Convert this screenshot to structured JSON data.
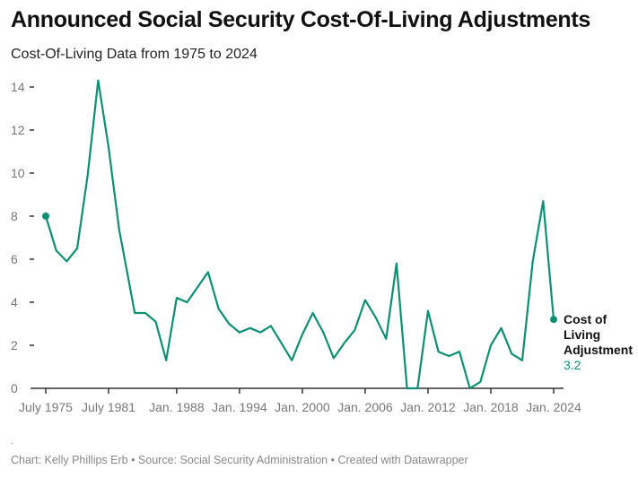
{
  "title": "Announced Social Security Cost-Of-Living Adjustments",
  "subtitle": "Cost-Of-Living Data from 1975 to 2024",
  "footer_dot": ".",
  "footer": "Chart: Kelly Phillips Erb • Source: Social Security Administration • Created with Datawrapper",
  "chart_data": {
    "type": "line",
    "color": "#0e8f73",
    "ylim": [
      0,
      14
    ],
    "yticks": [
      0,
      2,
      4,
      6,
      8,
      10,
      12,
      14
    ],
    "xticks": [
      "July 1975",
      "July 1981",
      "Jan. 1988",
      "Jan. 1994",
      "Jan. 2000",
      "Jan. 2006",
      "Jan. 2012",
      "Jan. 2018",
      "Jan. 2024"
    ],
    "grid": false,
    "series": [
      {
        "name": "Cost of Living Adjustment",
        "end_label": "3.2",
        "x": [
          "July 1975",
          "July 1976",
          "July 1977",
          "July 1978",
          "July 1979",
          "July 1980",
          "July 1981",
          "July 1982",
          "Jan. 1984",
          "Jan. 1985",
          "Jan. 1986",
          "Jan. 1987",
          "Jan. 1988",
          "Jan. 1989",
          "Jan. 1990",
          "Jan. 1991",
          "Jan. 1992",
          "Jan. 1993",
          "Jan. 1994",
          "Jan. 1995",
          "Jan. 1996",
          "Jan. 1997",
          "Jan. 1998",
          "Jan. 1999",
          "Jan. 2000",
          "Jan. 2001",
          "Jan. 2002",
          "Jan. 2003",
          "Jan. 2004",
          "Jan. 2005",
          "Jan. 2006",
          "Jan. 2007",
          "Jan. 2008",
          "Jan. 2009",
          "Jan. 2010",
          "Jan. 2011",
          "Jan. 2012",
          "Jan. 2013",
          "Jan. 2014",
          "Jan. 2015",
          "Jan. 2016",
          "Jan. 2017",
          "Jan. 2018",
          "Jan. 2019",
          "Jan. 2020",
          "Jan. 2021",
          "Jan. 2022",
          "Jan. 2023",
          "Jan. 2024"
        ],
        "values": [
          8.0,
          6.4,
          5.9,
          6.5,
          9.9,
          14.3,
          11.2,
          7.4,
          3.5,
          3.5,
          3.1,
          1.3,
          4.2,
          4.0,
          4.7,
          5.4,
          3.7,
          3.0,
          2.6,
          2.8,
          2.6,
          2.9,
          2.1,
          1.3,
          2.5,
          3.5,
          2.6,
          1.4,
          2.1,
          2.7,
          4.1,
          3.3,
          2.3,
          5.8,
          0,
          0,
          3.6,
          1.7,
          1.5,
          1.7,
          0,
          0.3,
          2.0,
          2.8,
          1.6,
          1.3,
          5.9,
          8.7,
          3.2
        ]
      }
    ]
  }
}
